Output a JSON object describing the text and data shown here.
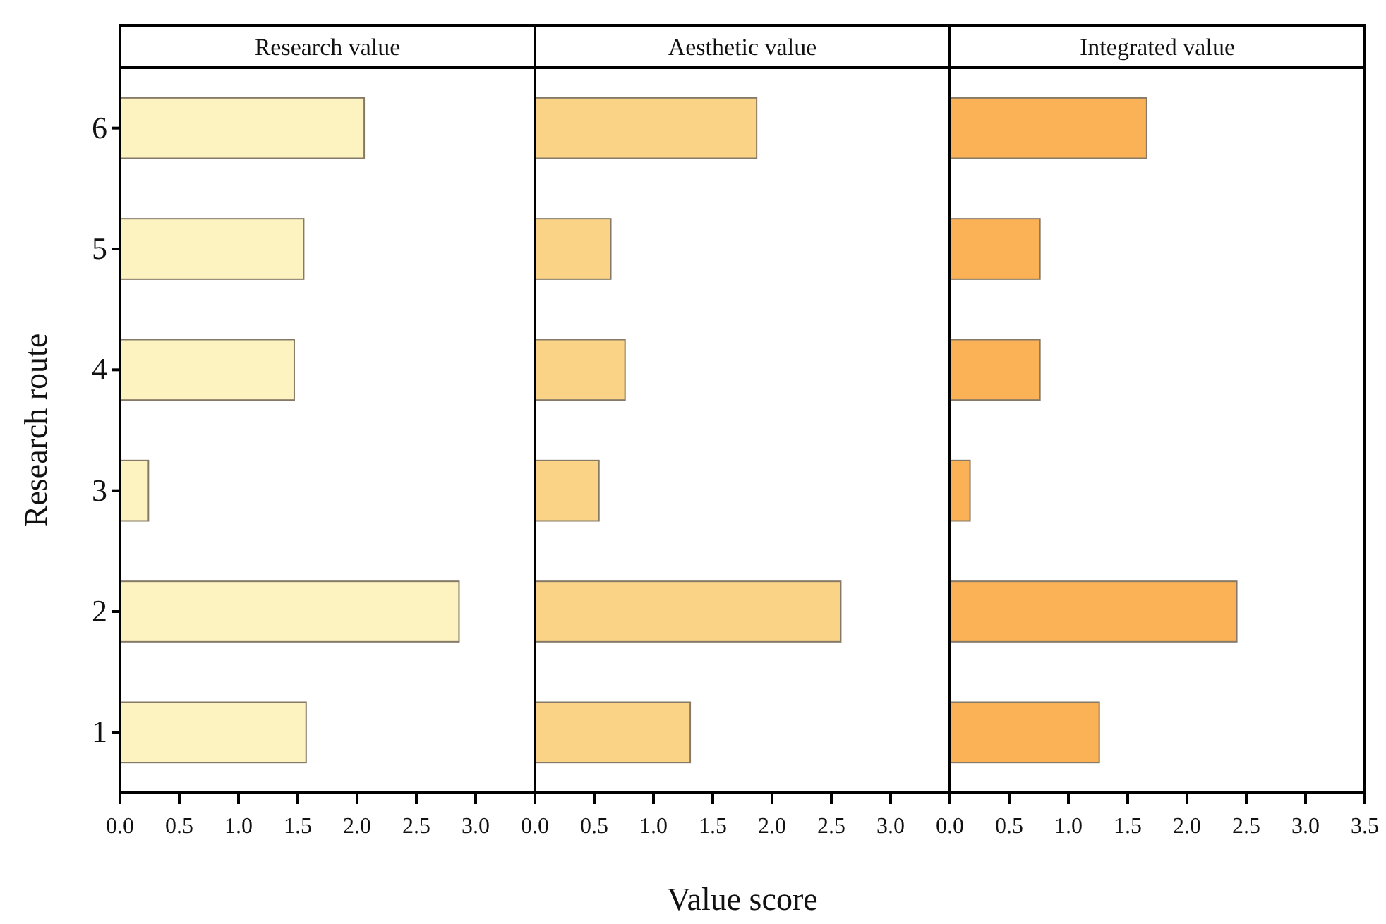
{
  "chart_data": [
    {
      "type": "bar",
      "orientation": "horizontal",
      "title": "Research value",
      "ylabel": "Research route",
      "categories": [
        "6",
        "5",
        "4",
        "3",
        "2",
        "1"
      ],
      "values": [
        2.06,
        1.55,
        1.47,
        0.24,
        2.86,
        1.57
      ],
      "color": "#fdf3c0",
      "xlim": [
        0,
        3.5
      ],
      "xticks": [
        {
          "value": 0,
          "label": "0.0"
        },
        {
          "value": 0.5,
          "label": "0.5"
        },
        {
          "value": 1,
          "label": "1.0"
        },
        {
          "value": 1.5,
          "label": "1.5"
        },
        {
          "value": 2,
          "label": "2.0"
        },
        {
          "value": 2.5,
          "label": "2.5"
        },
        {
          "value": 3,
          "label": "3.0"
        },
        {
          "value": 3.5,
          "label": null
        }
      ]
    },
    {
      "type": "bar",
      "orientation": "horizontal",
      "title": "Aesthetic value",
      "xlabel": "Value score",
      "values": [
        1.87,
        0.64,
        0.76,
        0.54,
        2.58,
        1.31
      ],
      "color": "#fad387",
      "xlim": [
        0,
        3.5
      ],
      "xticks": [
        {
          "value": 0,
          "label": "0.0"
        },
        {
          "value": 0.5,
          "label": "0.5"
        },
        {
          "value": 1,
          "label": "1.0"
        },
        {
          "value": 1.5,
          "label": "1.5"
        },
        {
          "value": 2,
          "label": "2.0"
        },
        {
          "value": 2.5,
          "label": "2.5"
        },
        {
          "value": 3,
          "label": "3.0"
        },
        {
          "value": 3.5,
          "label": null
        }
      ],
      "tick_labels": "x"
    },
    {
      "type": "bar",
      "orientation": "horizontal",
      "title": "Integrated value",
      "values": [
        1.66,
        0.76,
        0.76,
        0.17,
        2.42,
        1.26
      ],
      "color": "#fbb256",
      "xlim": [
        0,
        3.5
      ],
      "xticks": [
        {
          "value": 0,
          "label": "0.0"
        },
        {
          "value": 0.5,
          "label": "0.5"
        },
        {
          "value": 1,
          "label": "1.0"
        },
        {
          "value": 1.5,
          "label": "1.5"
        },
        {
          "value": 2,
          "label": "2.0"
        },
        {
          "value": 2.5,
          "label": "2.5"
        },
        {
          "value": 3,
          "label": "3.0"
        },
        {
          "value": 3.5,
          "label": "3.5"
        }
      ],
      "tick_labels": "x"
    }
  ]
}
